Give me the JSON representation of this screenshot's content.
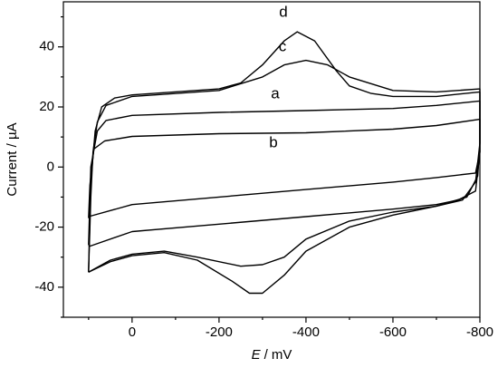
{
  "chart_data": {
    "type": "line",
    "x_label": {
      "symbol": "E",
      "unit": "/ mV"
    },
    "y_label": "Current / µA",
    "xlim": [
      158,
      -800
    ],
    "ylim": [
      -50,
      55
    ],
    "xticks": [
      0,
      -200,
      -400,
      -600,
      -800
    ],
    "xminorticks": [
      100,
      -100,
      -300,
      -500,
      -700
    ],
    "yticks": [
      40,
      20,
      0,
      -20,
      -40
    ],
    "yminorticks": [
      50,
      30,
      10,
      -10,
      -30,
      -50
    ],
    "series": [
      {
        "name": "a",
        "color": "#000000",
        "x": [
          100,
          95,
          80,
          60,
          0,
          -200,
          -400,
          -600,
          -700,
          -800,
          -800,
          -790,
          -750,
          -700,
          -600,
          -400,
          -200,
          0,
          100
        ],
        "values": [
          -26,
          0,
          12,
          15.5,
          17.2,
          18.2,
          18.8,
          19.5,
          20.5,
          22,
          5,
          -8,
          -11,
          -12.5,
          -14,
          -16.5,
          -19,
          -21.5,
          -26.5
        ]
      },
      {
        "name": "b",
        "color": "#000000",
        "x": [
          100,
          97,
          88,
          63,
          0,
          -200,
          -400,
          -600,
          -700,
          -800,
          -800,
          -790,
          -700,
          -600,
          -400,
          -200,
          0,
          100
        ],
        "values": [
          -17,
          -6,
          6,
          8.7,
          10.2,
          11.1,
          11.4,
          12.6,
          13.8,
          15.9,
          5,
          -2,
          -3.5,
          -5,
          -7.5,
          -10,
          -12.5,
          -16.5
        ]
      },
      {
        "name": "c",
        "color": "#000000",
        "x": [
          100,
          95,
          90,
          80,
          60,
          0,
          -200,
          -300,
          -350,
          -400,
          -450,
          -500,
          -600,
          -700,
          -800,
          -800,
          -790,
          -760,
          -700,
          -600,
          -500,
          -400,
          -350,
          -300,
          -250,
          -150,
          -74,
          0,
          50,
          100
        ],
        "values": [
          -35,
          -10,
          5,
          15,
          20.5,
          23.5,
          25.5,
          30,
          34,
          35.5,
          34,
          30,
          25.5,
          25,
          26,
          8,
          -5,
          -11,
          -13,
          -15,
          -18,
          -24,
          -30,
          -32.5,
          -33,
          -30,
          -28,
          -29,
          -31,
          -35
        ]
      },
      {
        "name": "d",
        "color": "#000000",
        "x": [
          100,
          95,
          85,
          70,
          40,
          0,
          -200,
          -250,
          -300,
          -350,
          -380,
          -420,
          -470,
          -500,
          -550,
          -600,
          -700,
          -800,
          -800,
          -795,
          -770,
          -700,
          -600,
          -500,
          -400,
          -350,
          -300,
          -270,
          -230,
          -150,
          -74,
          0,
          50,
          100
        ],
        "values": [
          -35,
          -5,
          12,
          20,
          23,
          24,
          26,
          28,
          34,
          42,
          45,
          42,
          32,
          27,
          24.5,
          23.5,
          23.5,
          25,
          8,
          -3,
          -10,
          -13,
          -16,
          -20,
          -28,
          -36,
          -42,
          -42,
          -38,
          -31,
          -28.5,
          -29.5,
          -31.5,
          -35
        ]
      }
    ]
  }
}
